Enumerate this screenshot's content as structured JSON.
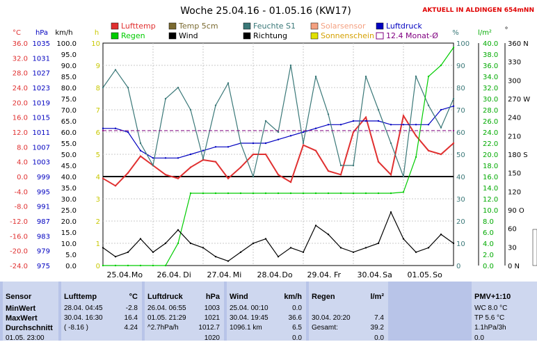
{
  "header": {
    "title": "Woche 25.04.16 - 01.05.16 (KW17)",
    "live_label": "AKTUELL IN ALDINGEN 654mNN"
  },
  "legend": [
    {
      "label": "Lufttemp",
      "color": "#e03030",
      "style": "box"
    },
    {
      "label": "Temp 5cm",
      "color": "#7a6a30",
      "style": "box"
    },
    {
      "label": "Feuchte S1",
      "color": "#3a7878",
      "style": "box"
    },
    {
      "label": "Solarsensor",
      "color": "#f4a080",
      "style": "box"
    },
    {
      "label": "Luftdruck",
      "color": "#0000c0",
      "style": "box"
    },
    {
      "label": "Regen",
      "color": "#00cc00",
      "style": "box"
    },
    {
      "label": "Wind",
      "color": "#000000",
      "style": "box"
    },
    {
      "label": "Richtung",
      "color": "#000000",
      "style": "box"
    },
    {
      "label": "Sonnenschein",
      "color": "#e0e000",
      "style": "box"
    },
    {
      "label": "12.4 Monat-Ø",
      "color": "#800080",
      "style": "outline"
    }
  ],
  "axes": {
    "temp_unit": "°C",
    "pressure_unit": "hPa",
    "wind_unit": "km/h",
    "sun_unit": "h",
    "humidity_unit": "%",
    "rain_unit": "l/m²",
    "direction_unit": "°",
    "temp_ticks": [
      "36.0",
      "32.0",
      "28.0",
      "24.0",
      "20.0",
      "16.0",
      "12.0",
      "8.0",
      "4.0",
      "0.0",
      "-4.0",
      "-8.0",
      "-12.0",
      "-16.0",
      "-20.0",
      "-24.0"
    ],
    "pressure_ticks": [
      "1035",
      "1031",
      "1027",
      "1023",
      "1019",
      "1015",
      "1011",
      "1007",
      "1003",
      "999",
      "995",
      "991",
      "987",
      "983",
      "979",
      "975"
    ],
    "wind_ticks": [
      "100.0",
      "95.0",
      "90.0",
      "85.0",
      "80.0",
      "75.0",
      "70.0",
      "65.0",
      "60.0",
      "55.0",
      "50.0",
      "45.0",
      "40.0",
      "35.0",
      "30.0",
      "25.0",
      "20.0",
      "15.0",
      "10.0",
      "5.0",
      "0.0"
    ],
    "sun_ticks": [
      "10",
      "9",
      "8",
      "7",
      "6",
      "5",
      "4",
      "3",
      "2",
      "1",
      "0"
    ],
    "humidity_ticks": [
      "100",
      "90",
      "80",
      "70",
      "60",
      "50",
      "40",
      "30",
      "20",
      "10",
      "0"
    ],
    "rain_ticks": [
      "40.0",
      "38.0",
      "36.0",
      "34.0",
      "32.0",
      "30.0",
      "28.0",
      "26.0",
      "24.0",
      "22.0",
      "20.0",
      "18.0",
      "16.0",
      "14.0",
      "12.0",
      "10.0",
      "8.0",
      "6.0",
      "4.0",
      "2.0",
      "0.0"
    ],
    "direction_ticks": [
      "360 N",
      "330",
      "300",
      "270 W",
      "240",
      "210",
      "180 S",
      "150",
      "120",
      "90 O",
      "60",
      "30",
      "0 N"
    ],
    "day_labels": [
      "25.04.",
      "Mo",
      "26.04.",
      "Di",
      "27.04.",
      "Mi",
      "28.04.",
      "Do",
      "29.04.",
      "Fr",
      "30.04.",
      "Sa",
      "01.05.",
      "So"
    ]
  },
  "chart_data": {
    "type": "line",
    "title": "Woche 25.04.16 - 01.05.16 (KW17)",
    "x_days": [
      "25.04. Mo",
      "26.04. Di",
      "27.04. Mi",
      "28.04. Do",
      "29.04. Fr",
      "30.04. Sa",
      "01.05. So"
    ],
    "x_hours": [
      0,
      6,
      12,
      18,
      24,
      30,
      36,
      42,
      48,
      54,
      60,
      66,
      72,
      78,
      84,
      90,
      96,
      102,
      108,
      114,
      120,
      126,
      132,
      138,
      144,
      150,
      156,
      162,
      168
    ],
    "ylim_temp": [
      -24,
      36
    ],
    "ylim_pressure": [
      975,
      1035
    ],
    "ylim_wind": [
      0,
      100
    ],
    "ylim_humidity": [
      0,
      100
    ],
    "ylim_rain": [
      0,
      40
    ],
    "ylim_sun": [
      0,
      10
    ],
    "series": [
      {
        "name": "Lufttemp",
        "axis": "temp",
        "color": "#e03030",
        "values": [
          -0.5,
          -2.5,
          1.0,
          5.5,
          3.0,
          0.5,
          -0.5,
          2.5,
          4.5,
          4.0,
          -0.5,
          2.5,
          6.0,
          6.0,
          0.5,
          -1.5,
          8.5,
          7.0,
          1.5,
          0.5,
          12.0,
          16.0,
          4.0,
          0.5,
          16.4,
          11.0,
          7.0,
          6.0,
          9.0
        ]
      },
      {
        "name": "Luftdruck",
        "axis": "pressure",
        "color": "#0000c0",
        "values": [
          1012,
          1012,
          1011,
          1006,
          1004,
          1004,
          1004,
          1005,
          1006,
          1007,
          1007,
          1008,
          1008,
          1008,
          1009,
          1010,
          1011,
          1012,
          1013,
          1013,
          1014,
          1014,
          1014,
          1013,
          1013,
          1013,
          1013,
          1017,
          1018
        ]
      },
      {
        "name": "Feuchte S1",
        "axis": "humidity",
        "color": "#3a7878",
        "values": [
          80,
          88,
          80,
          55,
          45,
          75,
          80,
          70,
          48,
          72,
          82,
          55,
          40,
          65,
          60,
          90,
          55,
          85,
          68,
          45,
          45,
          85,
          70,
          55,
          40,
          85,
          72,
          62,
          75
        ]
      },
      {
        "name": "Regen",
        "axis": "rain",
        "color": "#00cc00",
        "values": [
          0,
          0,
          0,
          0,
          0,
          0,
          4.0,
          13.0,
          13.0,
          13.0,
          13.0,
          13.0,
          13.0,
          13.0,
          13.0,
          13.0,
          13.0,
          13.0,
          13.0,
          13.0,
          13.0,
          13.0,
          13.0,
          13.0,
          13.2,
          19.5,
          34.0,
          36.0,
          39.2
        ]
      },
      {
        "name": "Wind",
        "axis": "wind",
        "color": "#000000",
        "values": [
          8,
          4,
          6,
          12,
          6,
          10,
          16,
          10,
          8,
          4,
          2,
          6,
          10,
          12,
          4,
          8,
          6,
          18,
          14,
          8,
          6,
          8,
          10,
          24,
          12,
          6,
          8,
          14,
          10
        ]
      },
      {
        "name": "Monat-Ø",
        "axis": "temp",
        "color": "#800080",
        "values": [
          12.4,
          12.4
        ]
      }
    ]
  },
  "stats": {
    "sensor": {
      "header": "Sensor",
      "rows": [
        "MinWert",
        "MaxWert",
        "Durchschnitt"
      ],
      "extra": "01.05. 23:00"
    },
    "lufttemp": {
      "header": "Lufttemp",
      "unit": "°C",
      "rows": [
        [
          "28.04.  04:45",
          "-2.8"
        ],
        [
          "30.04.  16:30",
          "16.4"
        ],
        [
          "( -8.16 )",
          "4.24"
        ]
      ]
    },
    "luftdruck": {
      "header": "Luftdruck",
      "unit": "hPa",
      "rows": [
        [
          "26.04.  06:55",
          "1003"
        ],
        [
          "01.05.  21:29",
          "1021"
        ],
        [
          "^2.7hPa/h",
          "1012.7"
        ]
      ],
      "extra": "1020"
    },
    "wind": {
      "header": "Wind",
      "unit": "km/h",
      "rows": [
        [
          "25.04.  00:10",
          "0.0"
        ],
        [
          "30.04.  19:45",
          "36.6"
        ],
        [
          "1096.1 km",
          "6.5"
        ]
      ],
      "extra": "0.0"
    },
    "regen": {
      "header": "Regen",
      "unit": "l/m²",
      "rows": [
        [
          "30.04.  20:20",
          "7.4"
        ],
        [
          "Gesamt:",
          "39.2"
        ]
      ],
      "extra": "0.0"
    },
    "pmv": {
      "header": "PMV+1:10",
      "rows": [
        "WC 8.0 °C",
        "TP 5.6 °C",
        "1.1hPa/3h"
      ],
      "extra": "0.0"
    }
  }
}
